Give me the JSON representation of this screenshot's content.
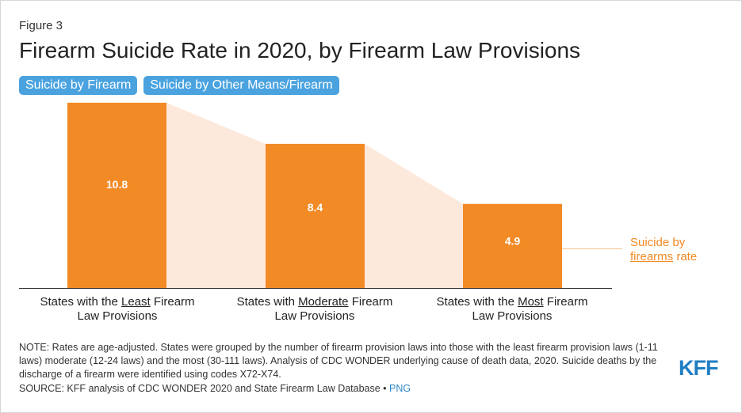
{
  "figure_label": "Figure 3",
  "title": "Firearm Suicide Rate in 2020, by Firearm Law Provisions",
  "tabs": [
    "Suicide by Firearm",
    "Suicide by Other Means/Firearm"
  ],
  "chart_data": {
    "type": "bar",
    "categories": [
      {
        "pre": "States with the ",
        "em": "Least",
        "post": " Firearm",
        "line2": "Law Provisions"
      },
      {
        "pre": "States with ",
        "em": "Moderate",
        "post": " Firearm",
        "line2": "Law Provisions"
      },
      {
        "pre": "States with the ",
        "em": "Most",
        "post": " Firearm",
        "line2": "Law Provisions"
      }
    ],
    "values": [
      10.8,
      8.4,
      4.9
    ],
    "data_labels": [
      "10.8",
      "8.4",
      "4.9"
    ],
    "ylim": [
      0,
      12.5
    ],
    "bar_color": "#f28a26",
    "band_color": "#fde9dc",
    "annotation": {
      "line1": "Suicide by",
      "link": "firearms",
      "line2_rest": " rate",
      "color": "#f28a26"
    }
  },
  "note": "NOTE: Rates are age-adjusted. States were grouped by the number of firearm provision laws into those with the least firearm provision laws (1-11 laws) moderate (12-24 laws) and the most (30-111 laws). Analysis of CDC WONDER underlying cause of death data, 2020. Suicide deaths by the discharge of a firearm were identified using codes X72-X74.",
  "source": {
    "text": "SOURCE: KFF analysis of CDC WONDER 2020 and State Firearm Law Database •",
    "link": "PNG"
  },
  "logo": {
    "text": "KFF",
    "color": "#1f7ec2"
  }
}
